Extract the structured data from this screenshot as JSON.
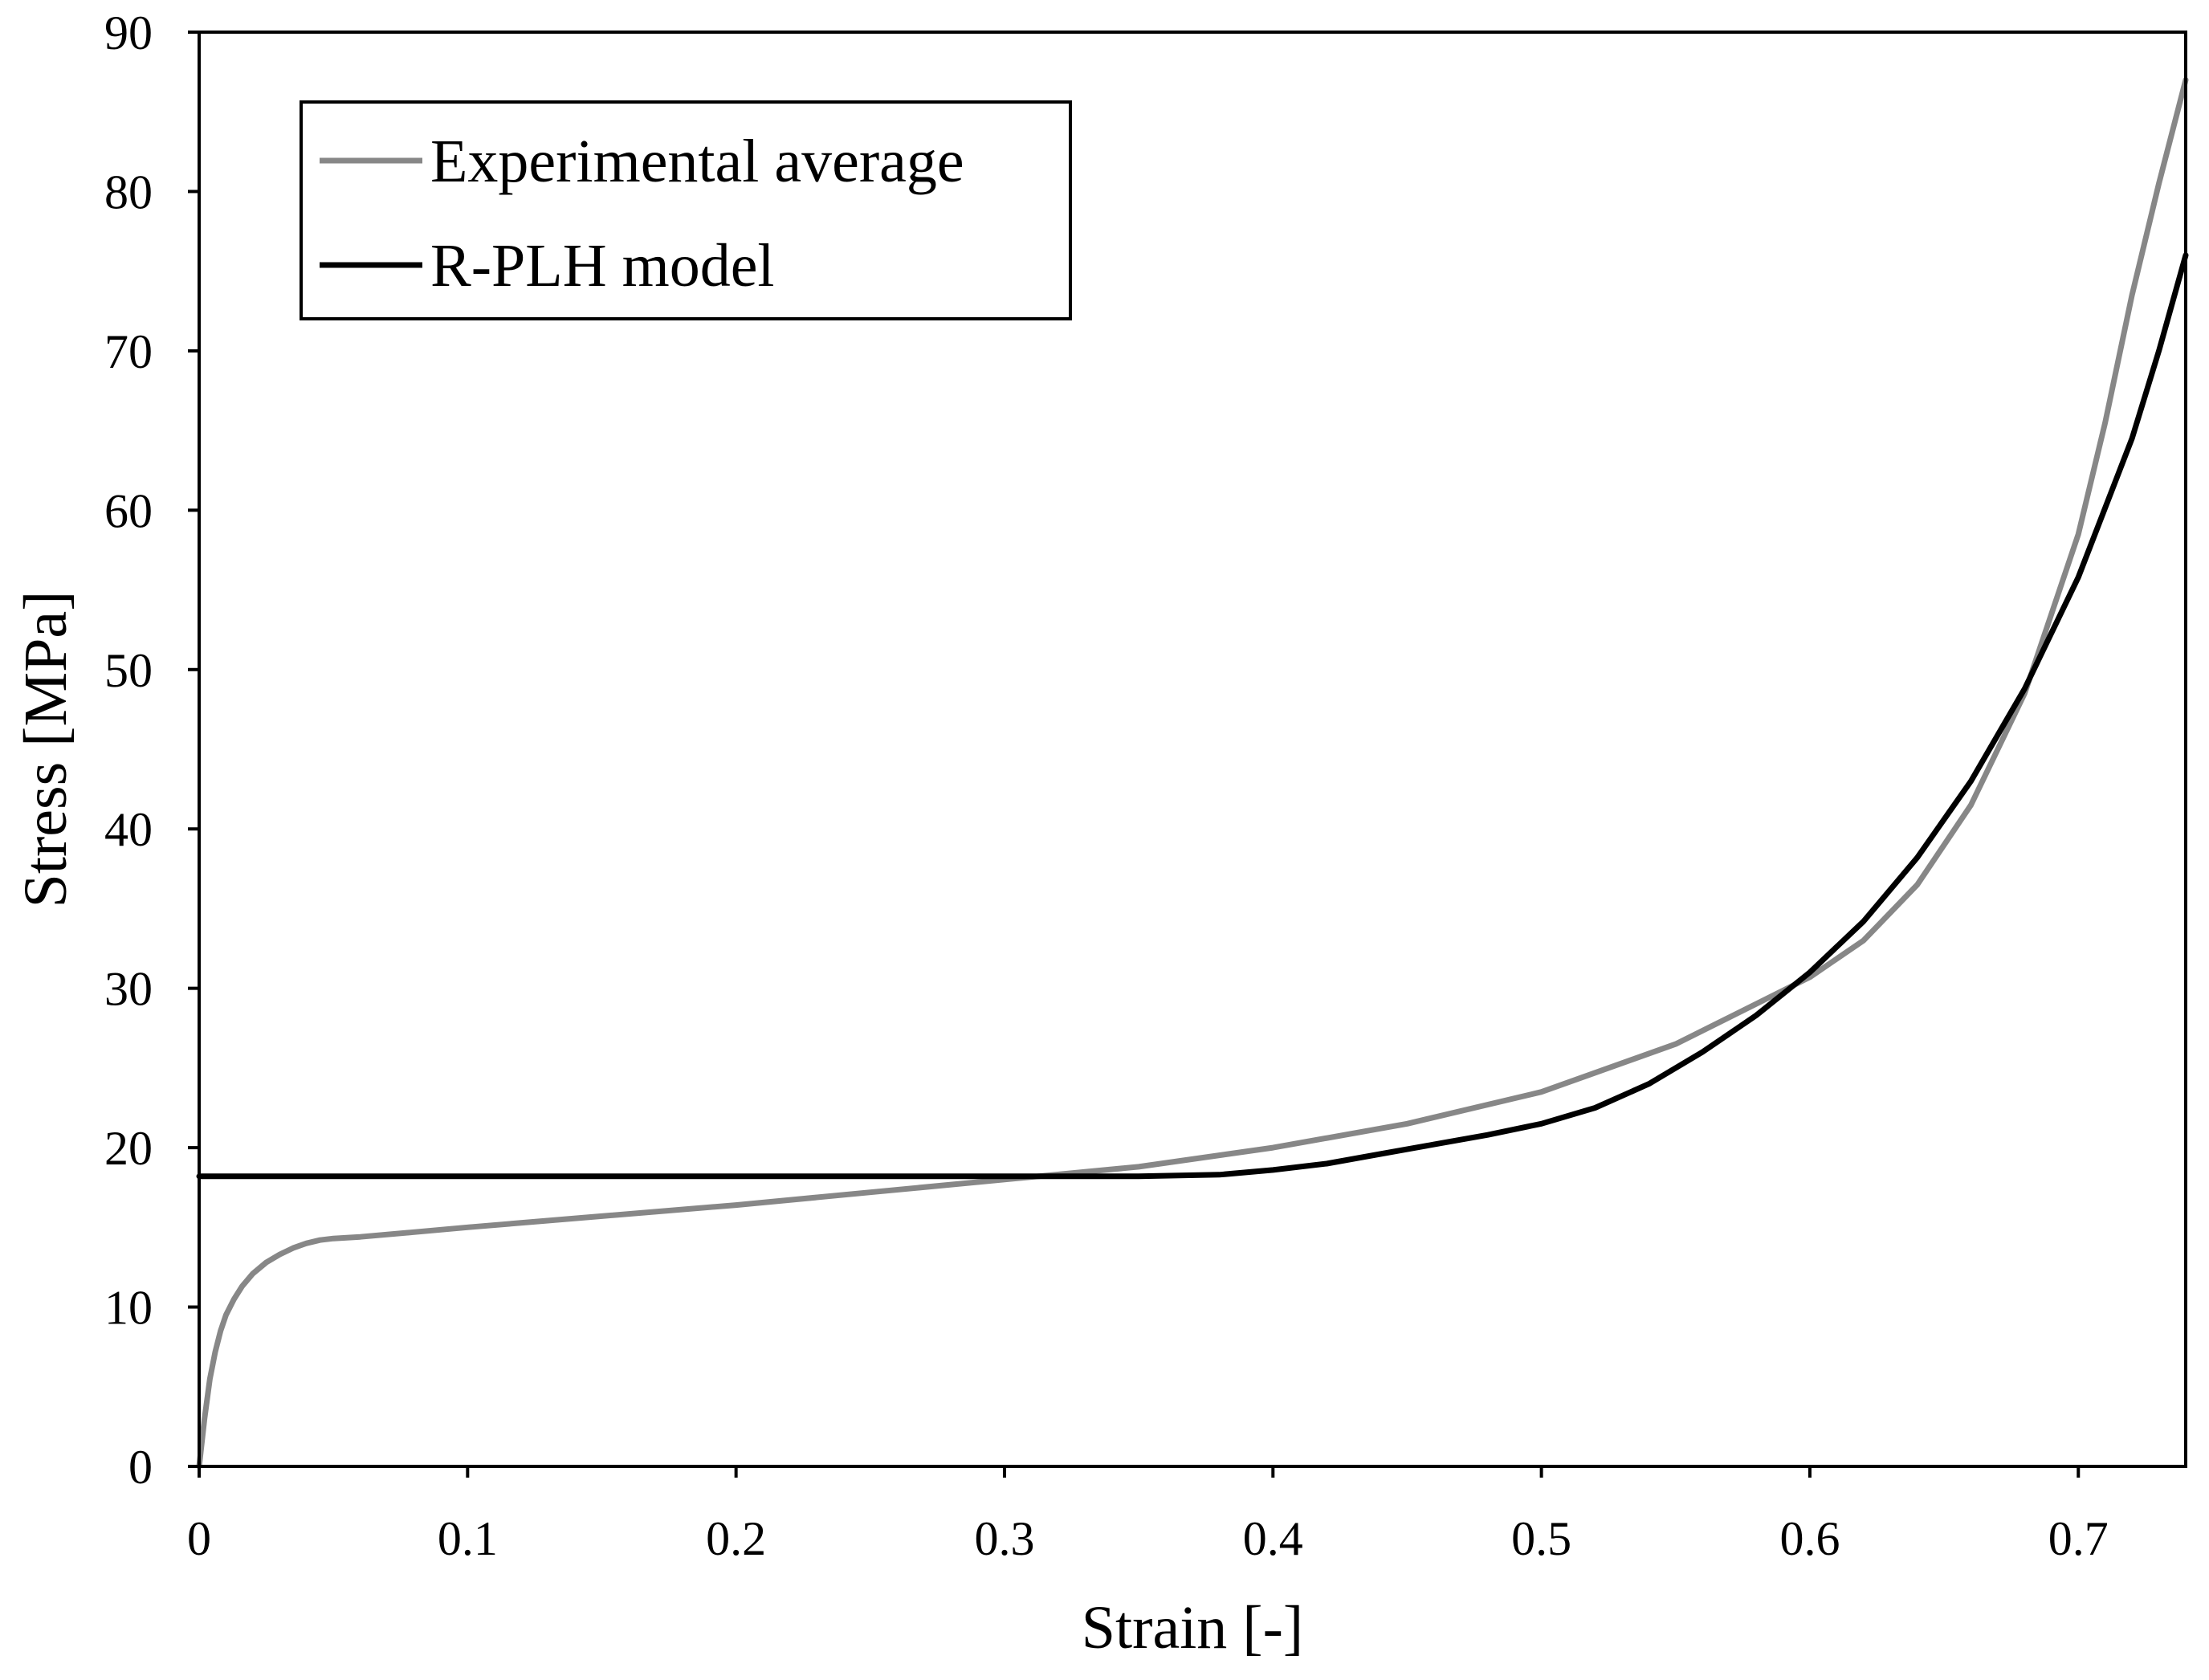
{
  "chart_data": {
    "type": "line",
    "title": "",
    "xlabel": "Strain [-]",
    "ylabel": "Stress [MPa]",
    "xlim": [
      0,
      0.74
    ],
    "ylim": [
      0,
      90
    ],
    "xticks": [
      0,
      0.1,
      0.2,
      0.3,
      0.4,
      0.5,
      0.6,
      0.7
    ],
    "xtick_labels": [
      "0",
      "0.1",
      "0.2",
      "0.3",
      "0.4",
      "0.5",
      "0.6",
      "0.7"
    ],
    "yticks": [
      0,
      10,
      20,
      30,
      40,
      50,
      60,
      70,
      80,
      90
    ],
    "ytick_labels": [
      "0",
      "10",
      "20",
      "30",
      "40",
      "50",
      "60",
      "70",
      "80",
      "90"
    ],
    "grid": false,
    "legend_position": "top-left",
    "series": [
      {
        "name": "Experimental average",
        "color": "#878787",
        "x": [
          0,
          0.002,
          0.004,
          0.006,
          0.008,
          0.01,
          0.013,
          0.016,
          0.02,
          0.025,
          0.03,
          0.035,
          0.04,
          0.045,
          0.05,
          0.06,
          0.08,
          0.1,
          0.15,
          0.2,
          0.25,
          0.3,
          0.35,
          0.4,
          0.45,
          0.5,
          0.55,
          0.6,
          0.62,
          0.64,
          0.66,
          0.68,
          0.7,
          0.71,
          0.72,
          0.73,
          0.74
        ],
        "y": [
          0,
          3,
          5.5,
          7.2,
          8.5,
          9.5,
          10.5,
          11.3,
          12.1,
          12.8,
          13.3,
          13.7,
          14.0,
          14.2,
          14.3,
          14.4,
          14.7,
          15.0,
          15.7,
          16.4,
          17.2,
          18.0,
          18.8,
          20.0,
          21.5,
          23.5,
          26.5,
          30.7,
          33.0,
          36.5,
          41.5,
          48.5,
          58.5,
          65.5,
          73.5,
          80.5,
          87.0
        ]
      },
      {
        "name": "R-PLH model",
        "color": "#000000",
        "x": [
          0,
          0.05,
          0.1,
          0.15,
          0.2,
          0.25,
          0.3,
          0.35,
          0.38,
          0.4,
          0.42,
          0.44,
          0.46,
          0.48,
          0.5,
          0.52,
          0.54,
          0.56,
          0.58,
          0.6,
          0.62,
          0.64,
          0.66,
          0.68,
          0.7,
          0.72,
          0.73,
          0.74
        ],
        "y": [
          18.2,
          18.2,
          18.2,
          18.2,
          18.2,
          18.2,
          18.2,
          18.2,
          18.3,
          18.6,
          19.0,
          19.6,
          20.2,
          20.8,
          21.5,
          22.5,
          24.0,
          26.0,
          28.3,
          31.0,
          34.2,
          38.2,
          43.0,
          48.8,
          55.8,
          64.5,
          70.0,
          76.0
        ]
      }
    ]
  }
}
